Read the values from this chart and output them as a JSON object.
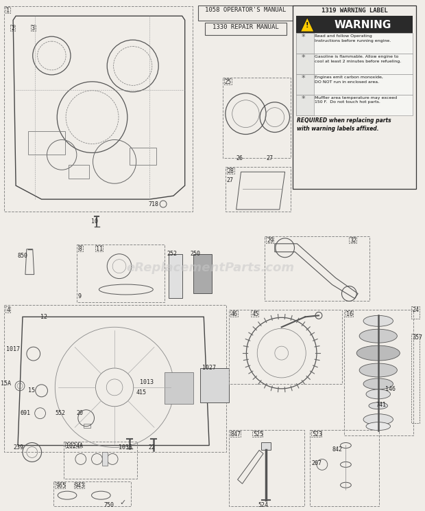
{
  "bg_color": "#f5f5f0",
  "page_bg": "#f0ede8",
  "watermark": "eReplacementParts.com",
  "warning_title": "1319 WARNING LABEL",
  "manual_1": "1058 OPERATOR'S MANUAL",
  "manual_2": "1330 REPAIR MANUAL",
  "warn_rows": [
    "Read and follow Operating\nInstructions before running engine.",
    "Gasoline is flammable. Allow engine to\ncool at least 2 minutes before refueling.",
    "Engines emit carbon monoxide,\nDO NOT run in enclosed area.",
    "Muffler area temperature may exceed\n150 F.  Do not touch hot parts."
  ],
  "warning_required": "REQUIRED when replacing parts\nwith warning labels affixed."
}
